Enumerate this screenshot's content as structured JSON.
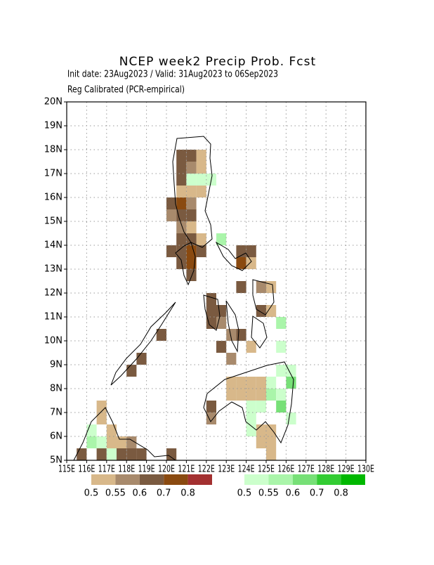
{
  "chart_data": {
    "type": "gridmap",
    "title": "NCEP week2 Precip Prob. Fcst",
    "subtitle": "Init date: 23Aug2023 / Valid: 31Aug2023 to 06Sep2023",
    "note": "Reg Calibrated (PCR-empirical)",
    "xlim": [
      115,
      130
    ],
    "ylim": [
      5,
      20
    ],
    "cell_size": 0.5,
    "grid": true,
    "xticks": [
      {
        "value": 115,
        "label": "115E"
      },
      {
        "value": 116,
        "label": "116E"
      },
      {
        "value": 117,
        "label": "117E"
      },
      {
        "value": 118,
        "label": "118E"
      },
      {
        "value": 119,
        "label": "119E"
      },
      {
        "value": 120,
        "label": "120E"
      },
      {
        "value": 121,
        "label": "121E"
      },
      {
        "value": 122,
        "label": "122E"
      },
      {
        "value": 123,
        "label": "123E"
      },
      {
        "value": 124,
        "label": "124E"
      },
      {
        "value": 125,
        "label": "125E"
      },
      {
        "value": 126,
        "label": "126E"
      },
      {
        "value": 127,
        "label": "127E"
      },
      {
        "value": 128,
        "label": "128E"
      },
      {
        "value": 129,
        "label": "129E"
      },
      {
        "value": 130,
        "label": "130E"
      }
    ],
    "yticks": [
      {
        "value": 5,
        "label": "5N"
      },
      {
        "value": 6,
        "label": "6N"
      },
      {
        "value": 7,
        "label": "7N"
      },
      {
        "value": 8,
        "label": "8N"
      },
      {
        "value": 9,
        "label": "9N"
      },
      {
        "value": 10,
        "label": "10N"
      },
      {
        "value": 11,
        "label": "11N"
      },
      {
        "value": 12,
        "label": "12N"
      },
      {
        "value": 13,
        "label": "13N"
      },
      {
        "value": 14,
        "label": "14N"
      },
      {
        "value": 15,
        "label": "15N"
      },
      {
        "value": 16,
        "label": "16N"
      },
      {
        "value": 17,
        "label": "17N"
      },
      {
        "value": 18,
        "label": "18N"
      },
      {
        "value": 19,
        "label": "19N"
      },
      {
        "value": 20,
        "label": "20N"
      }
    ],
    "legend_below": {
      "colors": [
        "#d8b88a",
        "#a88a6c",
        "#7a5a40",
        "#8a4a10",
        "#a33030"
      ],
      "ticks": [
        0.5,
        0.55,
        0.6,
        0.7,
        0.8
      ]
    },
    "legend_above": {
      "colors": [
        "#ccffcc",
        "#aaf5aa",
        "#77e077",
        "#33cc33",
        "#00b800"
      ],
      "ticks": [
        0.5,
        0.55,
        0.6,
        0.7,
        0.8
      ]
    },
    "below_cells": [
      {
        "lon": 120.5,
        "lat": 17.5,
        "level": 0.6
      },
      {
        "lon": 120.5,
        "lat": 17.0,
        "level": 0.6
      },
      {
        "lon": 120.5,
        "lat": 16.5,
        "level": 0.6
      },
      {
        "lon": 121.0,
        "lat": 17.5,
        "level": 0.6
      },
      {
        "lon": 121.0,
        "lat": 17.0,
        "level": 0.55
      },
      {
        "lon": 121.5,
        "lat": 17.5,
        "level": 0.5
      },
      {
        "lon": 121.5,
        "lat": 17.0,
        "level": 0.5
      },
      {
        "lon": 120.5,
        "lat": 16.0,
        "level": 0.5
      },
      {
        "lon": 121.0,
        "lat": 16.0,
        "level": 0.5
      },
      {
        "lon": 121.0,
        "lat": 16.5,
        "level": 0.5
      },
      {
        "lon": 121.5,
        "lat": 16.0,
        "level": 0.5
      },
      {
        "lon": 120.0,
        "lat": 15.5,
        "level": 0.6
      },
      {
        "lon": 120.5,
        "lat": 15.5,
        "level": 0.7
      },
      {
        "lon": 121.0,
        "lat": 15.5,
        "level": 0.55
      },
      {
        "lon": 120.0,
        "lat": 15.0,
        "level": 0.55
      },
      {
        "lon": 120.5,
        "lat": 15.0,
        "level": 0.6
      },
      {
        "lon": 121.0,
        "lat": 15.0,
        "level": 0.6
      },
      {
        "lon": 120.5,
        "lat": 14.5,
        "level": 0.55
      },
      {
        "lon": 121.0,
        "lat": 14.5,
        "level": 0.5
      },
      {
        "lon": 121.5,
        "lat": 14.0,
        "level": 0.5
      },
      {
        "lon": 120.5,
        "lat": 14.0,
        "level": 0.6
      },
      {
        "lon": 121.0,
        "lat": 14.0,
        "level": 0.6
      },
      {
        "lon": 120.0,
        "lat": 13.5,
        "level": 0.6
      },
      {
        "lon": 120.5,
        "lat": 13.5,
        "level": 0.6
      },
      {
        "lon": 121.0,
        "lat": 13.5,
        "level": 0.7
      },
      {
        "lon": 121.0,
        "lat": 13.0,
        "level": 0.7
      },
      {
        "lon": 120.5,
        "lat": 13.0,
        "level": 0.6
      },
      {
        "lon": 121.0,
        "lat": 12.5,
        "level": 0.6
      },
      {
        "lon": 121.5,
        "lat": 13.5,
        "level": 0.6
      },
      {
        "lon": 123.5,
        "lat": 13.5,
        "level": 0.6
      },
      {
        "lon": 124.0,
        "lat": 13.5,
        "level": 0.6
      },
      {
        "lon": 123.5,
        "lat": 13.0,
        "level": 0.7
      },
      {
        "lon": 124.0,
        "lat": 13.0,
        "level": 0.5
      },
      {
        "lon": 123.5,
        "lat": 12.0,
        "level": 0.6
      },
      {
        "lon": 122.0,
        "lat": 11.5,
        "level": 0.6
      },
      {
        "lon": 122.0,
        "lat": 11.0,
        "level": 0.6
      },
      {
        "lon": 122.0,
        "lat": 10.5,
        "level": 0.6
      },
      {
        "lon": 122.5,
        "lat": 11.0,
        "level": 0.6
      },
      {
        "lon": 122.5,
        "lat": 10.5,
        "level": 0.55
      },
      {
        "lon": 123.0,
        "lat": 10.0,
        "level": 0.55
      },
      {
        "lon": 122.5,
        "lat": 9.5,
        "level": 0.6
      },
      {
        "lon": 123.0,
        "lat": 9.0,
        "level": 0.55
      },
      {
        "lon": 123.5,
        "lat": 10.0,
        "level": 0.6
      },
      {
        "lon": 124.0,
        "lat": 9.5,
        "level": 0.5
      },
      {
        "lon": 124.5,
        "lat": 11.0,
        "level": 0.6
      },
      {
        "lon": 125.0,
        "lat": 11.0,
        "level": 0.5
      },
      {
        "lon": 124.5,
        "lat": 12.0,
        "level": 0.55
      },
      {
        "lon": 125.0,
        "lat": 12.0,
        "level": 0.5
      },
      {
        "lon": 119.5,
        "lat": 10.0,
        "level": 0.6
      },
      {
        "lon": 118.5,
        "lat": 9.0,
        "level": 0.6
      },
      {
        "lon": 118.0,
        "lat": 8.5,
        "level": 0.6
      },
      {
        "lon": 122.0,
        "lat": 7.0,
        "level": 0.6
      },
      {
        "lon": 122.0,
        "lat": 6.5,
        "level": 0.55
      },
      {
        "lon": 123.0,
        "lat": 8.0,
        "level": 0.5
      },
      {
        "lon": 123.5,
        "lat": 8.0,
        "level": 0.5
      },
      {
        "lon": 124.0,
        "lat": 8.0,
        "level": 0.5
      },
      {
        "lon": 124.5,
        "lat": 8.0,
        "level": 0.5
      },
      {
        "lon": 123.0,
        "lat": 7.5,
        "level": 0.5
      },
      {
        "lon": 123.5,
        "lat": 7.5,
        "level": 0.5
      },
      {
        "lon": 124.0,
        "lat": 7.5,
        "level": 0.5
      },
      {
        "lon": 124.5,
        "lat": 7.5,
        "level": 0.5
      },
      {
        "lon": 124.5,
        "lat": 6.0,
        "level": 0.5
      },
      {
        "lon": 125.0,
        "lat": 6.0,
        "level": 0.5
      },
      {
        "lon": 124.5,
        "lat": 5.5,
        "level": 0.5
      },
      {
        "lon": 125.0,
        "lat": 5.5,
        "level": 0.5
      },
      {
        "lon": 125.0,
        "lat": 5.0,
        "level": 0.5
      },
      {
        "lon": 116.5,
        "lat": 7.0,
        "level": 0.5
      },
      {
        "lon": 116.5,
        "lat": 6.5,
        "level": 0.5
      },
      {
        "lon": 117.0,
        "lat": 6.0,
        "level": 0.5
      },
      {
        "lon": 117.0,
        "lat": 5.5,
        "level": 0.5
      },
      {
        "lon": 117.5,
        "lat": 5.5,
        "level": 0.5
      },
      {
        "lon": 116.5,
        "lat": 5.0,
        "level": 0.6
      },
      {
        "lon": 115.5,
        "lat": 5.0,
        "level": 0.6
      },
      {
        "lon": 117.5,
        "lat": 5.0,
        "level": 0.6
      },
      {
        "lon": 118.0,
        "lat": 5.0,
        "level": 0.6
      },
      {
        "lon": 118.5,
        "lat": 5.0,
        "level": 0.6
      },
      {
        "lon": 118.0,
        "lat": 5.5,
        "level": 0.55
      },
      {
        "lon": 120.0,
        "lat": 5.0,
        "level": 0.6
      }
    ],
    "above_cells": [
      {
        "lon": 121.0,
        "lat": 16.5,
        "level": 0.5
      },
      {
        "lon": 121.5,
        "lat": 16.5,
        "level": 0.5
      },
      {
        "lon": 122.0,
        "lat": 16.5,
        "level": 0.5
      },
      {
        "lon": 122.5,
        "lat": 14.0,
        "level": 0.55
      },
      {
        "lon": 125.5,
        "lat": 10.5,
        "level": 0.55
      },
      {
        "lon": 125.5,
        "lat": 9.5,
        "level": 0.5
      },
      {
        "lon": 125.5,
        "lat": 8.5,
        "level": 0.5
      },
      {
        "lon": 126.0,
        "lat": 8.5,
        "level": 0.5
      },
      {
        "lon": 126.0,
        "lat": 8.0,
        "level": 0.6
      },
      {
        "lon": 125.0,
        "lat": 8.0,
        "level": 0.5
      },
      {
        "lon": 125.0,
        "lat": 7.5,
        "level": 0.55
      },
      {
        "lon": 125.5,
        "lat": 7.5,
        "level": 0.5
      },
      {
        "lon": 125.5,
        "lat": 7.0,
        "level": 0.6
      },
      {
        "lon": 124.0,
        "lat": 7.0,
        "level": 0.5
      },
      {
        "lon": 124.5,
        "lat": 7.0,
        "level": 0.5
      },
      {
        "lon": 124.0,
        "lat": 6.5,
        "level": 0.5
      },
      {
        "lon": 124.0,
        "lat": 6.0,
        "level": 0.5
      },
      {
        "lon": 126.0,
        "lat": 6.5,
        "level": 0.5
      },
      {
        "lon": 116.0,
        "lat": 6.0,
        "level": 0.5
      },
      {
        "lon": 116.0,
        "lat": 5.5,
        "level": 0.55
      },
      {
        "lon": 116.5,
        "lat": 5.5,
        "level": 0.5
      },
      {
        "lon": 117.0,
        "lat": 5.0,
        "level": 0.5
      }
    ]
  }
}
